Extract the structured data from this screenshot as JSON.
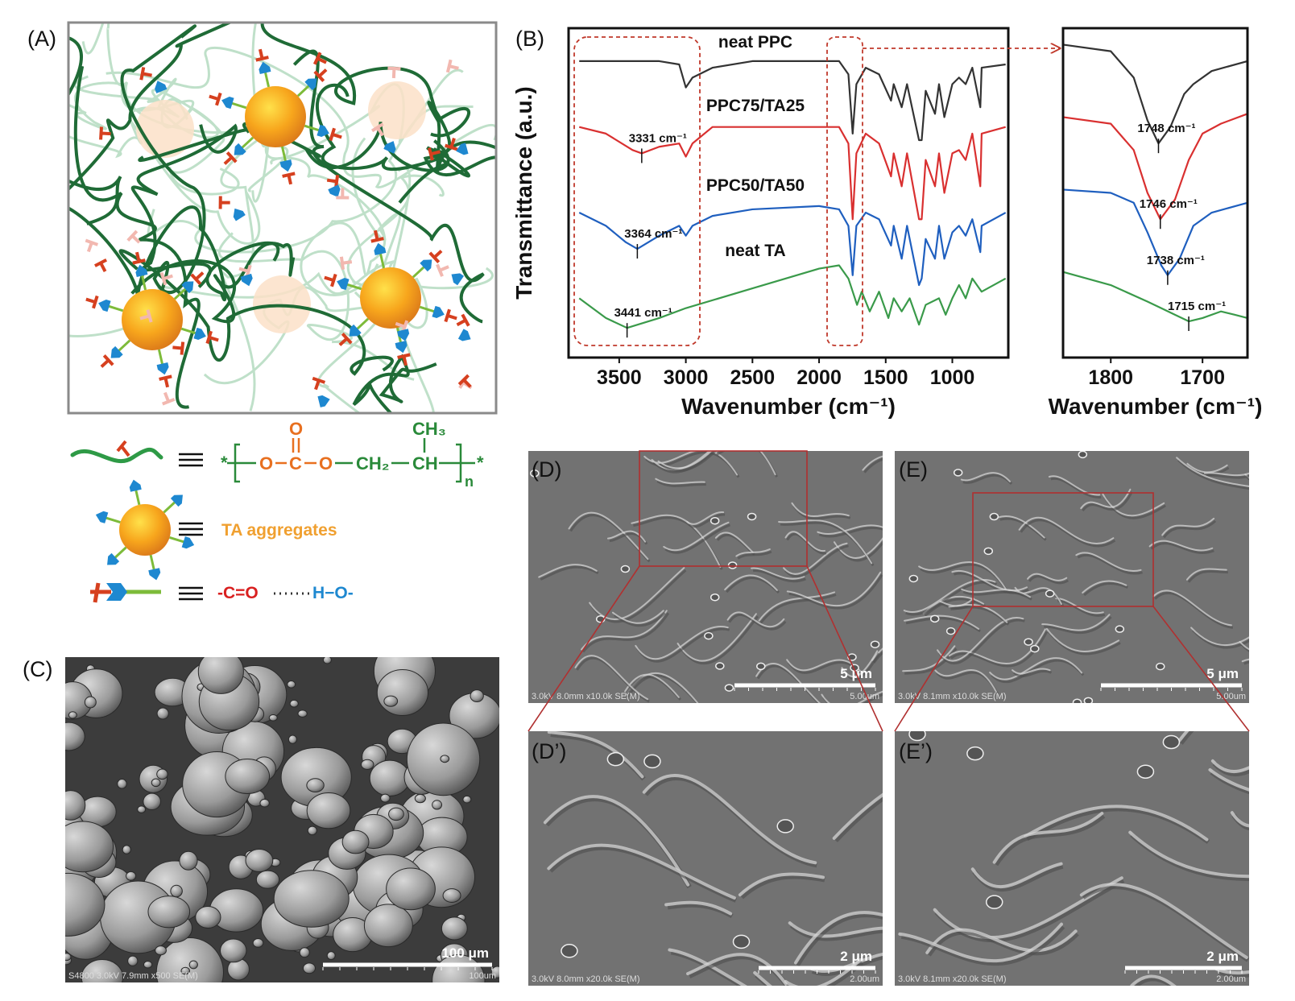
{
  "panel_a": {
    "label": "(A)",
    "legend": {
      "formula": {
        "star_left": "*",
        "o1": "O",
        "c": "C",
        "o2": "O",
        "ch2": "CH₂",
        "ch": "CH",
        "star_right": "*",
        "n": "n",
        "carbonyl_o": "O",
        "ch3": "CH₃"
      },
      "ta_aggregates": "TA aggregates",
      "hbond": {
        "acceptor": "-C=O",
        "donor": "H−O-"
      }
    }
  },
  "panel_b": {
    "label": "(B)"
  },
  "chart_data": [
    {
      "type": "line",
      "xlabel": "Wavenumber (cm⁻¹)",
      "ylabel": "Transmittance (a.u.)",
      "xlim": [
        3880,
        580
      ],
      "xticks": [
        3500,
        3000,
        2500,
        2000,
        1500,
        1000
      ],
      "ylim": [
        0,
        100
      ],
      "series": [
        {
          "name": "neat PPC",
          "color": "#333333",
          "x": [
            3800,
            3500,
            3200,
            3050,
            3000,
            2950,
            2800,
            2500,
            2000,
            1850,
            1780,
            1748,
            1720,
            1650,
            1550,
            1460,
            1440,
            1380,
            1340,
            1250,
            1230,
            1200,
            1130,
            1100,
            1060,
            1000,
            950,
            900,
            850,
            790,
            780,
            600
          ],
          "values": [
            90,
            90,
            90,
            89,
            82,
            85,
            88,
            90,
            90,
            90,
            86,
            68,
            83,
            88,
            86,
            78,
            83,
            76,
            83,
            66,
            66,
            81,
            74,
            83,
            73,
            83,
            85,
            83,
            88,
            76,
            88,
            89
          ]
        },
        {
          "name": "PPC75/TA25",
          "color": "#d93030",
          "x": [
            3800,
            3600,
            3400,
            3331,
            3200,
            3050,
            3000,
            2950,
            2800,
            2500,
            2000,
            1850,
            1780,
            1748,
            1720,
            1650,
            1550,
            1460,
            1440,
            1380,
            1340,
            1250,
            1230,
            1200,
            1130,
            1100,
            1060,
            1000,
            950,
            900,
            850,
            790,
            780,
            600
          ],
          "values": [
            70,
            68,
            63,
            62,
            64,
            65,
            61,
            65,
            70,
            70,
            70,
            70,
            65,
            42,
            62,
            68,
            65,
            55,
            62,
            52,
            62,
            42,
            42,
            60,
            52,
            62,
            50,
            62,
            63,
            60,
            68,
            52,
            68,
            70
          ],
          "annotation": {
            "text": "3331 cm⁻¹",
            "x": 3331
          }
        },
        {
          "name": "PPC50/TA50",
          "color": "#1f5fbf",
          "x": [
            3800,
            3600,
            3450,
            3364,
            3200,
            3050,
            3000,
            2950,
            2800,
            2500,
            2000,
            1850,
            1780,
            1748,
            1720,
            1650,
            1550,
            1460,
            1440,
            1380,
            1340,
            1250,
            1230,
            1200,
            1130,
            1100,
            1060,
            1000,
            950,
            900,
            850,
            790,
            780,
            600
          ],
          "values": [
            44,
            40,
            35,
            33,
            37,
            40,
            37,
            40,
            43,
            45,
            46,
            45,
            40,
            25,
            40,
            44,
            42,
            34,
            40,
            30,
            40,
            22,
            24,
            36,
            30,
            40,
            30,
            38,
            40,
            37,
            42,
            32,
            40,
            44
          ],
          "annotation": {
            "text": "3364 cm⁻¹",
            "x": 3364
          }
        },
        {
          "name": "neat TA",
          "color": "#3a9a4a",
          "x": [
            3800,
            3600,
            3441,
            3200,
            3000,
            2500,
            2000,
            1850,
            1780,
            1715,
            1680,
            1620,
            1550,
            1480,
            1440,
            1380,
            1320,
            1250,
            1200,
            1100,
            1050,
            1000,
            950,
            900,
            850,
            780,
            600
          ],
          "values": [
            18,
            12,
            9,
            12,
            15,
            21,
            27,
            28,
            24,
            16,
            20,
            14,
            20,
            12,
            18,
            14,
            18,
            10,
            16,
            18,
            13,
            18,
            22,
            18,
            24,
            20,
            24
          ],
          "annotation": {
            "text": "3441 cm⁻¹",
            "x": 3441
          }
        }
      ]
    },
    {
      "type": "line",
      "xlabel": "Wavenumber (cm⁻¹)",
      "xlim": [
        1852,
        1651
      ],
      "xticks": [
        1800,
        1700
      ],
      "ylim": [
        0,
        100
      ],
      "series": [
        {
          "color": "#333333",
          "x": [
            1852,
            1800,
            1775,
            1760,
            1748,
            1735,
            1720,
            1710,
            1690,
            1651
          ],
          "values": [
            95,
            93,
            85,
            72,
            65,
            70,
            80,
            83,
            87,
            90
          ],
          "annotation": {
            "text": "1748 cm⁻¹",
            "x": 1748
          }
        },
        {
          "color": "#d93030",
          "x": [
            1852,
            1800,
            1775,
            1760,
            1746,
            1730,
            1715,
            1700,
            1680,
            1651
          ],
          "values": [
            73,
            71,
            63,
            50,
            42,
            48,
            60,
            68,
            71,
            74
          ],
          "annotation": {
            "text": "1746 cm⁻¹",
            "x": 1746
          }
        },
        {
          "color": "#1f5fbf",
          "x": [
            1852,
            1800,
            1775,
            1760,
            1745,
            1738,
            1725,
            1710,
            1690,
            1651
          ],
          "values": [
            51,
            50,
            47,
            38,
            28,
            25,
            30,
            40,
            44,
            47
          ],
          "annotation": {
            "text": "1738 cm⁻¹",
            "x": 1738
          }
        },
        {
          "color": "#3a9a4a",
          "x": [
            1852,
            1800,
            1760,
            1730,
            1715,
            1700,
            1680,
            1665,
            1651
          ],
          "values": [
            26,
            22,
            17,
            13,
            11,
            12,
            14,
            13,
            12
          ],
          "annotation": {
            "text": "1715 cm⁻¹",
            "x": 1715
          }
        }
      ]
    }
  ],
  "panel_c": {
    "label": "(C)",
    "scale_bar": "100 μm",
    "info": "S4800 3.0kV 7.9mm x500 SE(M)",
    "scale": "100um"
  },
  "panel_d": {
    "label": "(D)",
    "scale_bar": "5 μm",
    "info": "3.0kV 8.0mm x10.0k SE(M)",
    "scale": "5.00um"
  },
  "panel_e": {
    "label": "(E)",
    "scale_bar": "5 μm",
    "info": "3.0kV 8.1mm x10.0k SE(M)",
    "scale": "5.00um"
  },
  "panel_d2": {
    "label": "(D’)",
    "scale_bar": "2 μm",
    "info": "3.0kV 8.0mm x20.0k SE(M)",
    "scale": "2.00um"
  },
  "panel_e2": {
    "label": "(E’)",
    "scale_bar": "2 μm",
    "info": "3.0kV 8.1mm x20.0k SE(M)",
    "scale": "2.00um"
  }
}
